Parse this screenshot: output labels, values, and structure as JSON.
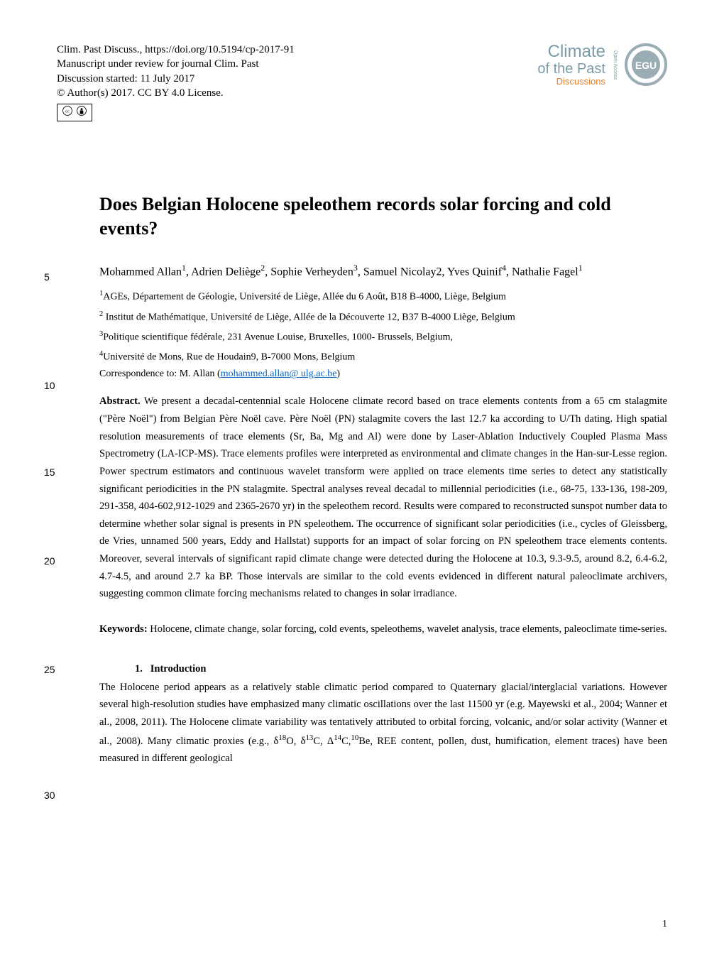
{
  "header": {
    "journal_ref": "Clim. Past Discuss., https://doi.org/10.5194/cp-2017-91",
    "review_status": "Manuscript under review for journal Clim. Past",
    "discussion_date": "Discussion started: 11 July 2017",
    "license": "© Author(s) 2017. CC BY 4.0 License.",
    "cc_label": "CC",
    "by_label": "BY"
  },
  "journal_brand": {
    "climate": "Climate",
    "of_the_past": "of the Past",
    "discussions": "Discussions",
    "open_access": "Open Access",
    "egu": "EGU"
  },
  "title": "Does Belgian Holocene speleothem records solar forcing and cold events?",
  "authors_html": "Mohammed Allan<sup>1</sup>, Adrien Deliège<sup>2</sup>, Sophie Verheyden<sup>3</sup>, Samuel Nicolay2, Yves Quinif<sup>4</sup>, Nathalie Fagel<sup>1</sup>",
  "affiliations": {
    "a1": "<sup>1</sup>AGEs, Département de Géologie, Université de Liège, Allée du 6 Août, B18 B-4000, Liège, Belgium",
    "a2": "<sup>2</sup> Institut de Mathématique, Université de Liège, Allée de la Découverte 12, B37 B-4000 Liège, Belgium",
    "a3": "<sup>3</sup>Politique scientifique fédérale, 231 Avenue Louise, Bruxelles, 1000- Brussels, Belgium,",
    "a4": "<sup>4</sup>Université de Mons, Rue de Houdain9, B-7000 Mons, Belgium"
  },
  "correspondence": {
    "label": "Correspondence to: M. Allan (",
    "email": "mohammed.allan@ ulg.ac.be",
    "close": ")"
  },
  "abstract": {
    "label": "Abstract.",
    "text": " We present a decadal-centennial scale Holocene climate record based on trace elements contents from a 65 cm stalagmite (\"Père Noël\") from Belgian Père Noël cave. Père Noël (PN) stalagmite covers the last 12.7 ka according to U/Th dating. High spatial resolution measurements of trace elements (Sr, Ba, Mg and Al) were done by Laser-Ablation Inductively Coupled Plasma Mass Spectrometry (LA-ICP-MS). Trace elements profiles were interpreted as environmental and climate changes in the Han-sur-Lesse region. Power spectrum estimators and continuous wavelet transform were applied on trace elements time series to detect any statistically significant periodicities in the PN stalagmite. Spectral analyses reveal decadal to millennial periodicities (i.e., 68-75, 133-136, 198-209, 291-358, 404-602,912-1029 and 2365-2670 yr) in the speleothem record. Results were compared to reconstructed sunspot number data to determine whether solar signal is presents in PN speleothem. The occurrence of significant solar periodicities (i.e., cycles of Gleissberg, de Vries, unnamed 500 years, Eddy and Hallstat) supports for an impact of solar forcing on PN speleothem trace elements contents. Moreover, several intervals of significant rapid climate change were detected during the Holocene at 10.3, 9.3-9.5, around 8.2, 6.4-6.2, 4.7-4.5, and around 2.7 ka BP. Those intervals are similar to the cold events evidenced in different natural paleoclimate archivers, suggesting common climate forcing mechanisms related to changes in solar irradiance."
  },
  "keywords": {
    "label": "Keywords:",
    "text": " Holocene, climate change, solar forcing, cold events, speleothems, wavelet analysis, trace elements, paleoclimate time-series."
  },
  "section": {
    "number": "1.",
    "heading": "Introduction"
  },
  "intro_text": "The Holocene period appears as a relatively stable climatic period compared to Quaternary glacial/interglacial variations. However several high-resolution studies have emphasized many climatic oscillations over the last 11500 yr (e.g. Mayewski et al., 2004; Wanner et al., 2008, 2011). The Holocene climate variability was tentatively attributed to orbital forcing, volcanic, and/or solar activity (Wanner et al., 2008). Many climatic proxies (e.g., δ<sup>18</sup>O, δ<sup>13</sup>C, Δ<sup>14</sup>C,<sup>10</sup>Be, REE content, pollen, dust, humification, element traces) have been measured in different geological",
  "line_numbers": {
    "ln5": "5",
    "ln10": "10",
    "ln15": "15",
    "ln20": "20",
    "ln25": "25",
    "ln30": "30"
  },
  "page_number": "1",
  "colors": {
    "journal_brand": "#7a9ca8",
    "discussions": "#e67e22",
    "link": "#0563c1"
  }
}
